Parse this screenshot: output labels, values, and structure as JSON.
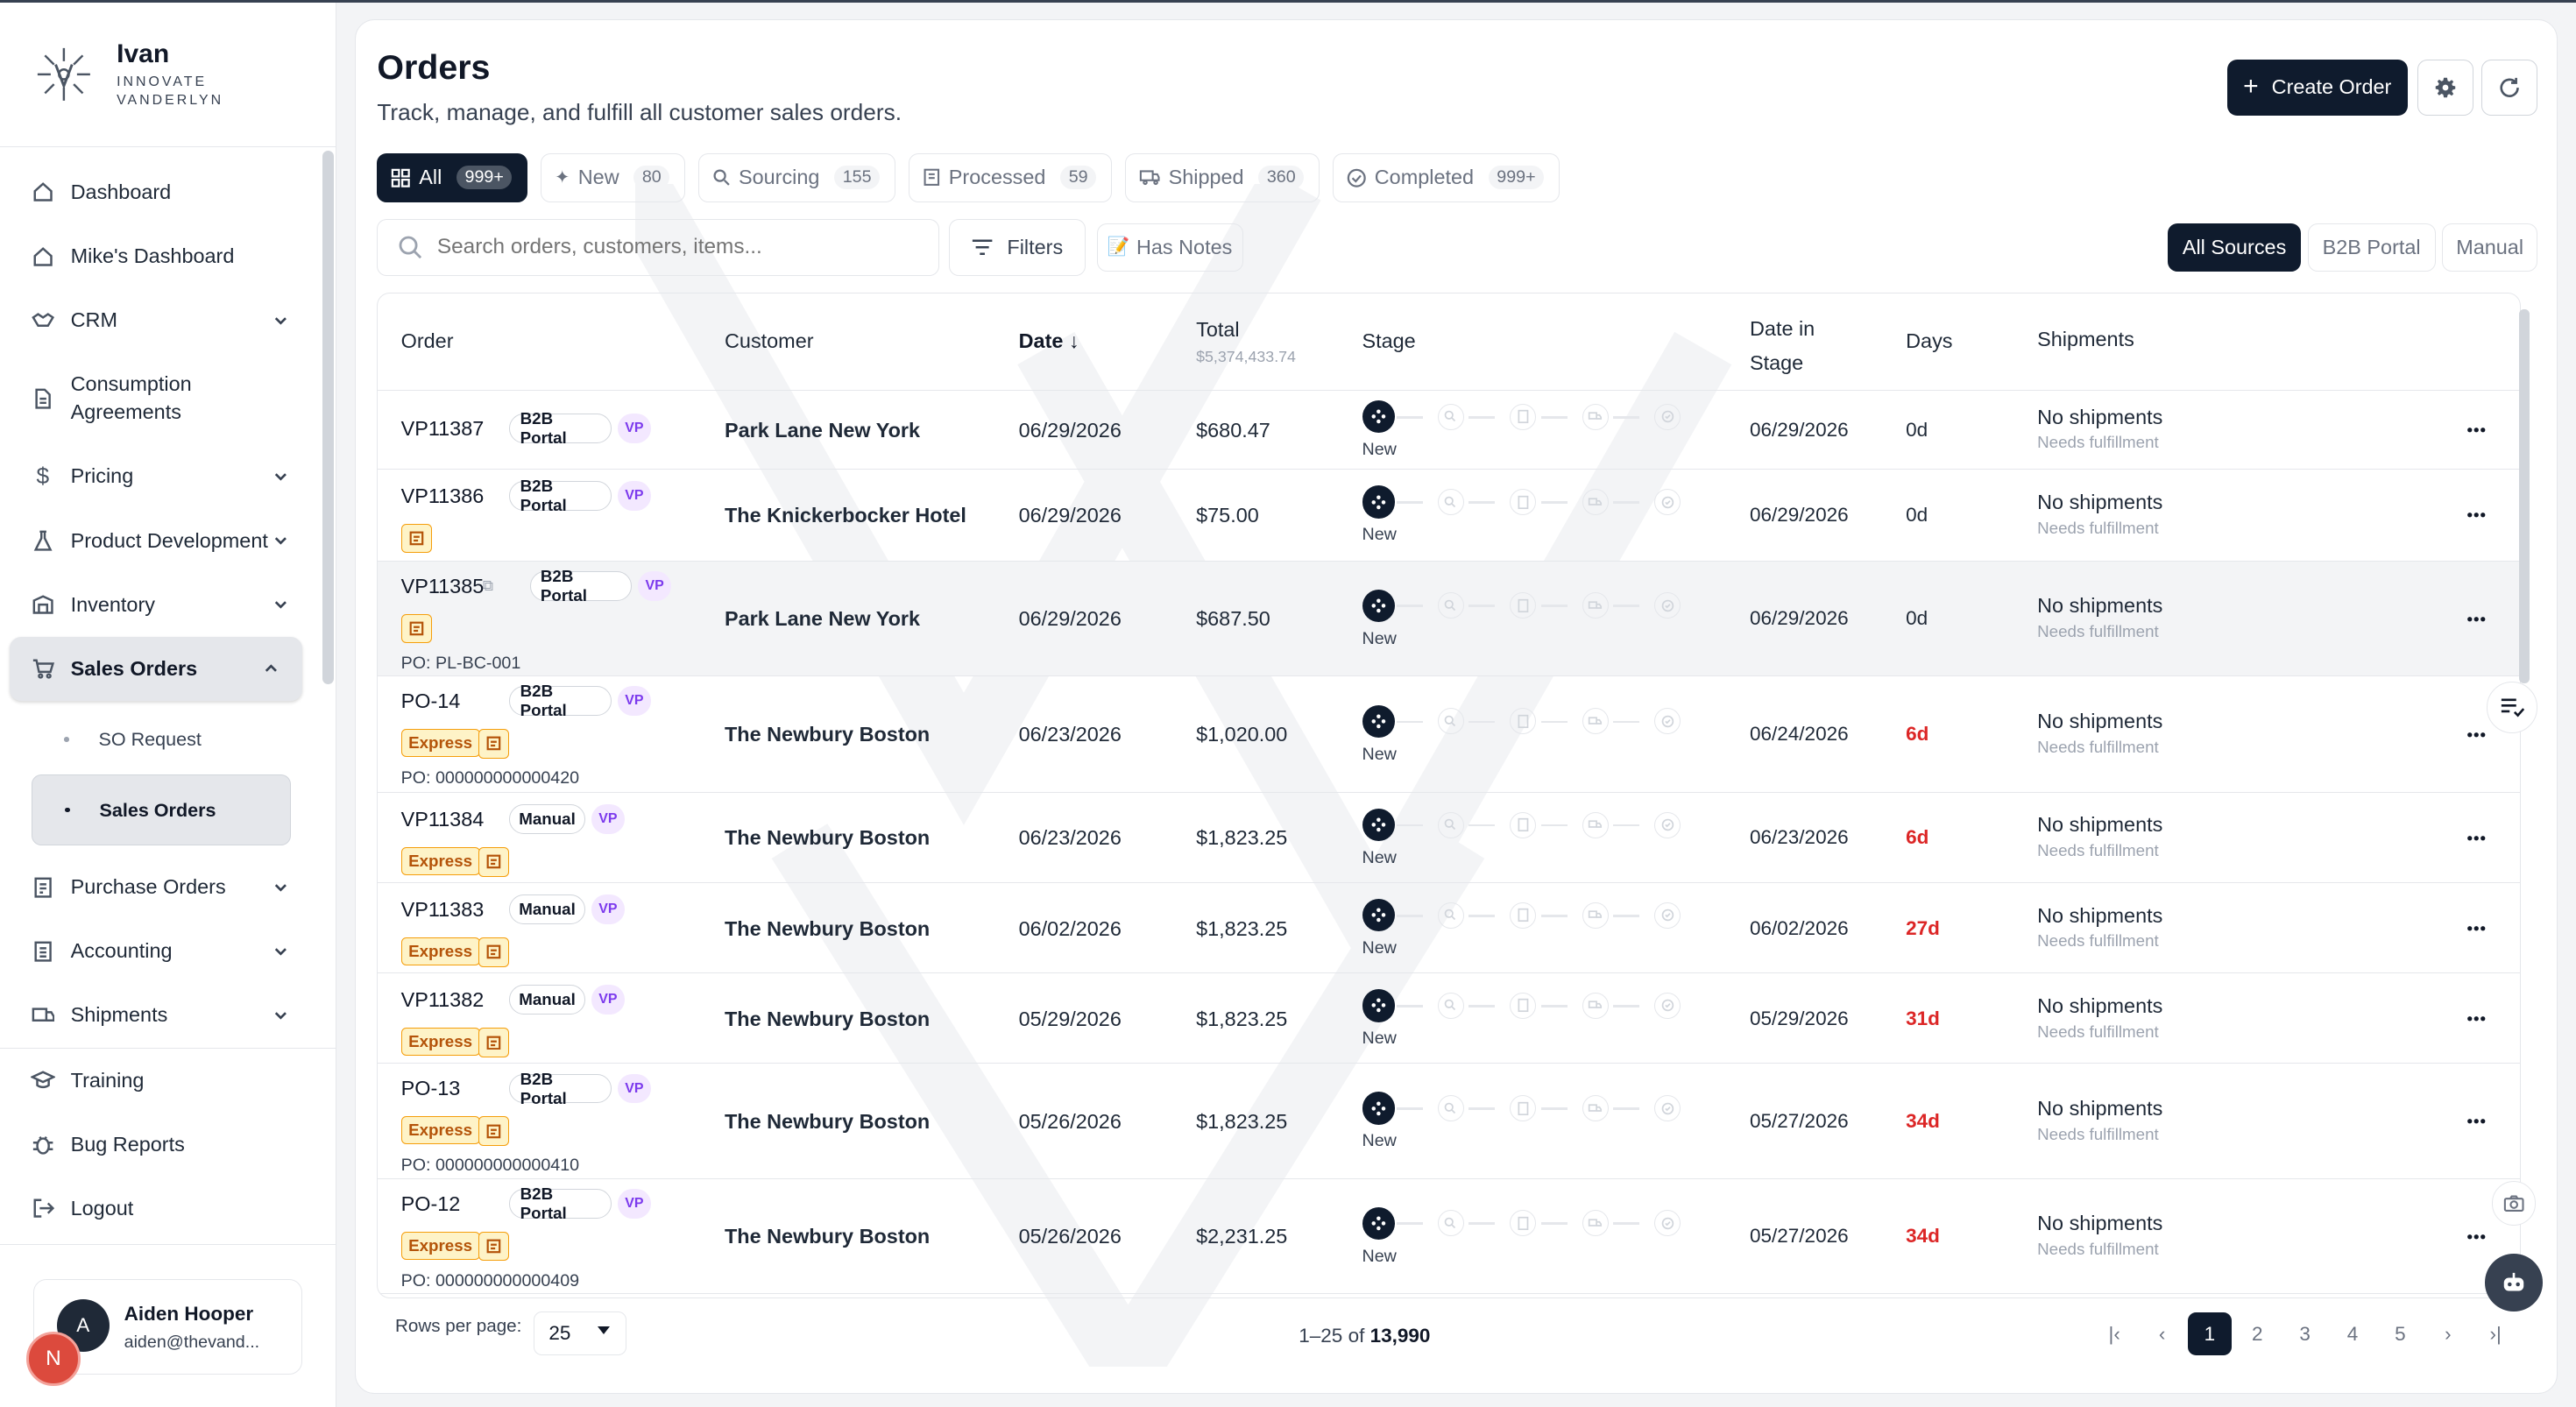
{
  "brand": {
    "name": "Ivan",
    "tagline_1": "INNOVATE",
    "tagline_2": "VANDERLYN"
  },
  "nav": {
    "dashboard": "Dashboard",
    "mikes_dashboard": "Mike's Dashboard",
    "crm": "CRM",
    "consumption_1": "Consumption",
    "consumption_2": "Agreements",
    "pricing": "Pricing",
    "product_development": "Product Development",
    "inventory": "Inventory",
    "sales_orders": "Sales Orders",
    "so_request": "SO Request",
    "sales_orders_sub": "Sales Orders",
    "purchase_orders": "Purchase Orders",
    "accounting": "Accounting",
    "shipments": "Shipments",
    "training": "Training",
    "bug_reports": "Bug Reports",
    "logout": "Logout"
  },
  "user": {
    "name": "Aiden Hooper",
    "email": "aiden@thevand...",
    "initial": "A",
    "initial2": "N"
  },
  "page": {
    "title": "Orders",
    "subtitle": "Track, manage, and fulfill all customer sales orders.",
    "create_label": "Create Order"
  },
  "tabs": [
    {
      "label": "All",
      "count": "999+",
      "icon": "grid-icon"
    },
    {
      "label": "New",
      "count": "80",
      "icon": "sparkle-icon"
    },
    {
      "label": "Sourcing",
      "count": "155",
      "icon": "search-icon"
    },
    {
      "label": "Processed",
      "count": "59",
      "icon": "document-icon"
    },
    {
      "label": "Shipped",
      "count": "360",
      "icon": "truck-icon"
    },
    {
      "label": "Completed",
      "count": "999+",
      "icon": "check-circle-icon"
    }
  ],
  "search": {
    "placeholder": "Search orders, customers, items..."
  },
  "toolbar": {
    "filters": "Filters",
    "has_notes": "Has Notes"
  },
  "sources": [
    "All Sources",
    "B2B Portal",
    "Manual"
  ],
  "columns": {
    "order": "Order",
    "customer": "Customer",
    "date": "Date",
    "total": "Total",
    "total_sum": "$5,374,433.74",
    "stage": "Stage",
    "date_in_stage_1": "Date in",
    "date_in_stage_2": "Stage",
    "days": "Days",
    "shipments": "Shipments"
  },
  "orders": [
    {
      "id": "VP11387",
      "source": "B2B Portal",
      "vp": "VP",
      "express": "",
      "po": "",
      "customer": "Park Lane New York",
      "date": "06/29/2026",
      "total": "$680.47",
      "stage": "New",
      "stage_date": "06/29/2026",
      "days": "0d",
      "ship": "No shipments",
      "ship_sub": "Needs fulfillment"
    },
    {
      "id": "VP11386",
      "source": "B2B Portal",
      "vp": "VP",
      "express": "",
      "po": "",
      "customer": "The Knickerbocker Hotel",
      "date": "06/29/2026",
      "total": "$75.00",
      "stage": "New",
      "stage_date": "06/29/2026",
      "days": "0d",
      "ship": "No shipments",
      "ship_sub": "Needs fulfillment"
    },
    {
      "id": "VP11385",
      "source": "B2B Portal",
      "vp": "VP",
      "express": "",
      "po": "PO: PL-BC-001",
      "customer": "Park Lane New York",
      "date": "06/29/2026",
      "total": "$687.50",
      "stage": "New",
      "stage_date": "06/29/2026",
      "days": "0d",
      "ship": "No shipments",
      "ship_sub": "Needs fulfillment"
    },
    {
      "id": "PO-14",
      "source": "B2B Portal",
      "vp": "VP",
      "express": "Express",
      "po": "PO: 000000000000420",
      "customer": "The Newbury Boston",
      "date": "06/23/2026",
      "total": "$1,020.00",
      "stage": "New",
      "stage_date": "06/24/2026",
      "days": "6d",
      "ship": "No shipments",
      "ship_sub": "Needs fulfillment"
    },
    {
      "id": "VP11384",
      "source": "Manual",
      "vp": "VP",
      "express": "Express",
      "po": "",
      "customer": "The Newbury Boston",
      "date": "06/23/2026",
      "total": "$1,823.25",
      "stage": "New",
      "stage_date": "06/23/2026",
      "days": "6d",
      "ship": "No shipments",
      "ship_sub": "Needs fulfillment"
    },
    {
      "id": "VP11383",
      "source": "Manual",
      "vp": "VP",
      "express": "Express",
      "po": "",
      "customer": "The Newbury Boston",
      "date": "06/02/2026",
      "total": "$1,823.25",
      "stage": "New",
      "stage_date": "06/02/2026",
      "days": "27d",
      "ship": "No shipments",
      "ship_sub": "Needs fulfillment"
    },
    {
      "id": "VP11382",
      "source": "Manual",
      "vp": "VP",
      "express": "Express",
      "po": "",
      "customer": "The Newbury Boston",
      "date": "05/29/2026",
      "total": "$1,823.25",
      "stage": "New",
      "stage_date": "05/29/2026",
      "days": "31d",
      "ship": "No shipments",
      "ship_sub": "Needs fulfillment"
    },
    {
      "id": "PO-13",
      "source": "B2B Portal",
      "vp": "VP",
      "express": "Express",
      "po": "PO: 000000000000410",
      "customer": "The Newbury Boston",
      "date": "05/26/2026",
      "total": "$1,823.25",
      "stage": "New",
      "stage_date": "05/27/2026",
      "days": "34d",
      "ship": "No shipments",
      "ship_sub": "Needs fulfillment"
    },
    {
      "id": "PO-12",
      "source": "B2B Portal",
      "vp": "VP",
      "express": "Express",
      "po": "PO: 000000000000409",
      "customer": "The Newbury Boston",
      "date": "05/26/2026",
      "total": "$2,231.25",
      "stage": "New",
      "stage_date": "05/27/2026",
      "days": "34d",
      "ship": "No shipments",
      "ship_sub": "Needs fulfillment"
    }
  ],
  "footer": {
    "rows_label": "Rows per page:",
    "rows_value": "25",
    "range": "1–25",
    "of": "of",
    "total": "13,990",
    "pages": [
      "1",
      "2",
      "3",
      "4",
      "5"
    ]
  }
}
